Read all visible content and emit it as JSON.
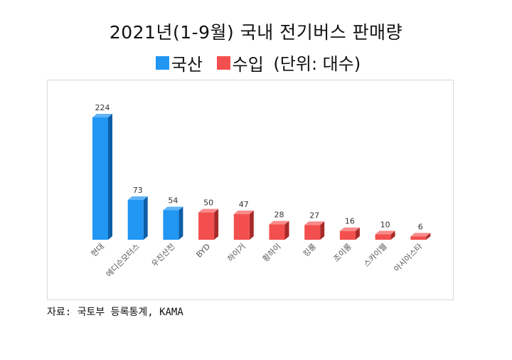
{
  "title": "2021년(1-9월) 국내 전기버스 판매량",
  "legend": {
    "items": [
      {
        "label": "국산",
        "color": "#2196f3"
      },
      {
        "label": "수입",
        "color": "#f44f4f"
      }
    ],
    "unit": "(단위: 대수)"
  },
  "source": "자료: 국토부 등록통계, KAMA",
  "chart_data": {
    "type": "bar",
    "categories": [
      "현대",
      "에디슨모터스",
      "우진산전",
      "BYD",
      "하이거",
      "황하이",
      "킹룽",
      "조이롱",
      "스카이웰",
      "아시아스타"
    ],
    "values": [
      224,
      73,
      54,
      50,
      47,
      28,
      27,
      16,
      10,
      6
    ],
    "origin": [
      "국산",
      "국산",
      "국산",
      "수입",
      "수입",
      "수입",
      "수입",
      "수입",
      "수입",
      "수입"
    ],
    "data_labels": [
      "224",
      "73",
      "54",
      "50",
      "47",
      "28",
      "27",
      "16",
      "10",
      "6"
    ],
    "ylim": [
      0,
      224
    ],
    "grid": false,
    "legend_placement": "top",
    "colors": {
      "국산": {
        "front": "#2196f3",
        "side": "#0d5ea6",
        "top": "#5fb4f7"
      },
      "수입": {
        "front": "#f44f4f",
        "side": "#a82a2a",
        "top": "#f88a8a"
      }
    }
  }
}
